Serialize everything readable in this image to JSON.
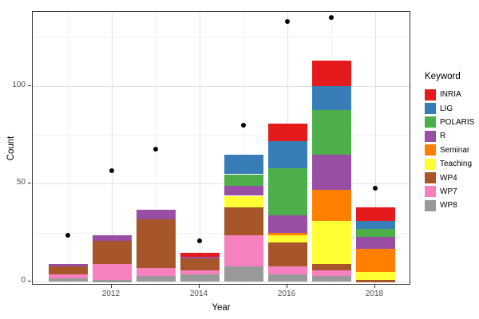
{
  "chart_data": {
    "type": "bar",
    "variant": "stacked-bars-with-scatter-points",
    "title": "",
    "xlabel": "Year",
    "ylabel": "Count",
    "legend_title": "Keyword",
    "legend_position": "right",
    "grid": "on",
    "x": [
      2011,
      2012,
      2013,
      2014,
      2015,
      2016,
      2017,
      2018
    ],
    "x_major_ticks": [
      "2012",
      "2014",
      "2016",
      "2018"
    ],
    "x_major_years": [
      2012,
      2014,
      2016,
      2018
    ],
    "x_minor_years": [
      2011,
      2013,
      2015,
      2017
    ],
    "y_ticks": [
      "0",
      "50",
      "100"
    ],
    "y_tick_values": [
      0,
      50,
      100
    ],
    "y_minor_values": [
      25,
      75,
      125
    ],
    "ylim": [
      0,
      140
    ],
    "stack_order_bottom_to_top": [
      "WP8",
      "WP7",
      "WP4",
      "Teaching",
      "Seminar",
      "R",
      "POLARIS",
      "LIG",
      "INRIA"
    ],
    "series": [
      {
        "name": "INRIA",
        "color": "#e41a1c",
        "values": [
          0,
          0,
          0,
          2,
          0,
          9,
          13,
          7
        ]
      },
      {
        "name": "LIG",
        "color": "#377eb8",
        "values": [
          0,
          0,
          0,
          0,
          10,
          14,
          12,
          4
        ]
      },
      {
        "name": "POLARIS",
        "color": "#4daf4a",
        "values": [
          0,
          0,
          0,
          0,
          6,
          24,
          23,
          4
        ]
      },
      {
        "name": "R",
        "color": "#984ea3",
        "values": [
          1,
          3,
          5,
          1,
          5,
          9,
          18,
          6
        ]
      },
      {
        "name": "Seminar",
        "color": "#ff7f00",
        "values": [
          0,
          0,
          0,
          0,
          0,
          1,
          16,
          12
        ]
      },
      {
        "name": "Teaching",
        "color": "#ffff33",
        "values": [
          0,
          0,
          0,
          0,
          6,
          4,
          22,
          4
        ]
      },
      {
        "name": "WP4",
        "color": "#a65628",
        "values": [
          4,
          12,
          25,
          6,
          14,
          12,
          3,
          1
        ]
      },
      {
        "name": "WP7",
        "color": "#f781bf",
        "values": [
          2,
          8,
          4,
          2,
          16,
          4,
          3,
          0
        ]
      },
      {
        "name": "WP8",
        "color": "#999999",
        "values": [
          2,
          1,
          3,
          4,
          8,
          4,
          3,
          0
        ]
      }
    ],
    "bar_totals": [
      9,
      24,
      37,
      15,
      65,
      81,
      113,
      38
    ],
    "points": {
      "name": "yearly-count-dots",
      "color": "#000000",
      "values": [
        24,
        57,
        68,
        21,
        80,
        133,
        135,
        48
      ]
    }
  }
}
